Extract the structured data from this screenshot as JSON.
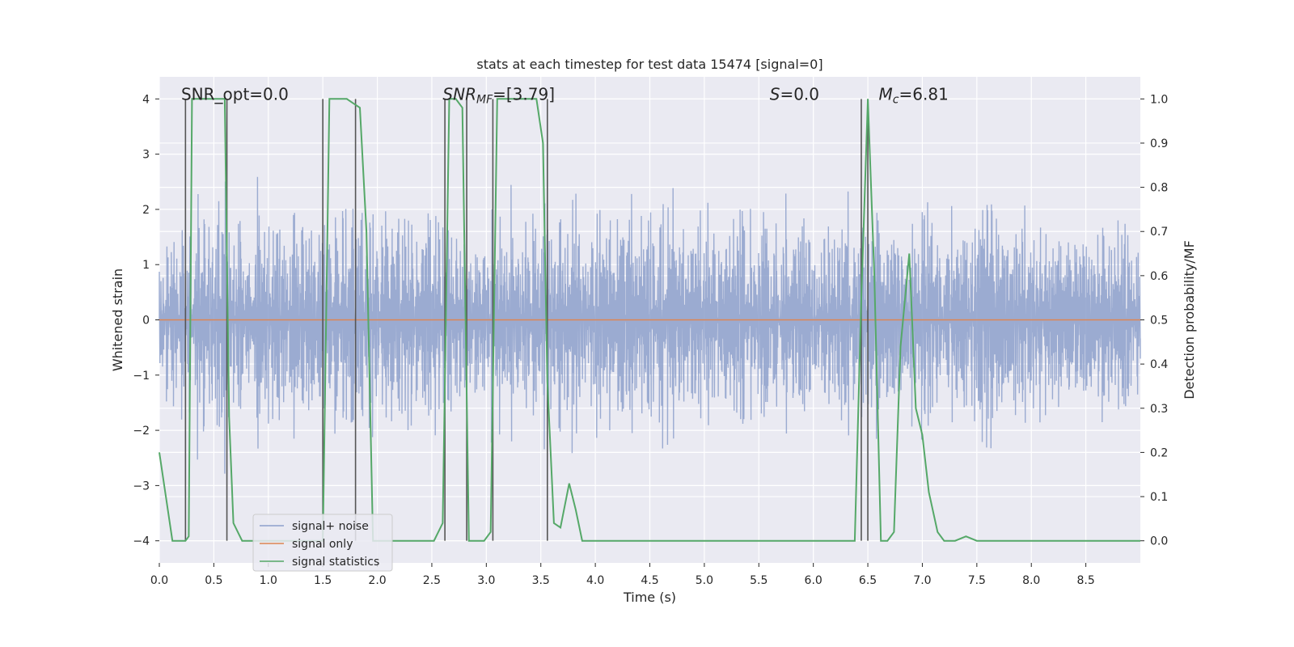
{
  "chart_data": {
    "type": "line",
    "title": "stats at each timestep for test data 15474 [signal=0]",
    "xlabel": "Time (s)",
    "ylabel_left": "Whitened strain",
    "ylabel_right": "Detection probability/MF",
    "xlim": [
      0.0,
      9.0
    ],
    "ylim_left": [
      -4.4,
      4.4
    ],
    "ylim_right": [
      -0.05,
      1.05
    ],
    "x_ticks": [
      0.0,
      0.5,
      1.0,
      1.5,
      2.0,
      2.5,
      3.0,
      3.5,
      4.0,
      4.5,
      5.0,
      5.5,
      6.0,
      6.5,
      7.0,
      7.5,
      8.0,
      8.5
    ],
    "x_tick_labels": [
      "0.0",
      "0.5",
      "1.0",
      "1.5",
      "2.0",
      "2.5",
      "3.0",
      "3.5",
      "4.0",
      "4.5",
      "5.0",
      "5.5",
      "6.0",
      "6.5",
      "7.0",
      "7.5",
      "8.0",
      "8.5"
    ],
    "y_left_ticks": [
      -4,
      -3,
      -2,
      -1,
      0,
      1,
      2,
      3,
      4
    ],
    "y_left_tick_labels": [
      "−4",
      "−3",
      "−2",
      "−1",
      "0",
      "1",
      "2",
      "3",
      "4"
    ],
    "y_right_ticks": [
      0.0,
      0.1,
      0.2,
      0.3,
      0.4,
      0.5,
      0.6,
      0.7,
      0.8,
      0.9,
      1.0
    ],
    "y_right_tick_labels": [
      "0.0",
      "0.1",
      "0.2",
      "0.3",
      "0.4",
      "0.5",
      "0.6",
      "0.7",
      "0.8",
      "0.9",
      "1.0"
    ],
    "annotations": [
      {
        "text": "SNR_opt=0.0",
        "x": 0.2,
        "y": 4.0
      },
      {
        "text": "SNR_MF=[3.79]",
        "x": 2.6,
        "y": 4.0
      },
      {
        "text": "S=0.0",
        "x": 5.6,
        "y": 4.0
      },
      {
        "text": "M_c=6.81",
        "x": 6.6,
        "y": 4.0
      }
    ],
    "vertical_lines": [
      0.24,
      0.62,
      1.5,
      1.8,
      2.62,
      2.82,
      3.06,
      3.56,
      6.44,
      6.5
    ],
    "series": [
      {
        "name": "signal+ noise",
        "axis": "left",
        "color": "#8da0cb",
        "kind": "noise",
        "typical_range": [
          -2.0,
          2.0
        ],
        "peak_range": [
          -3.9,
          3.5
        ]
      },
      {
        "name": "signal only",
        "axis": "left",
        "color": "#dd8452",
        "x": [
          0.0,
          9.0
        ],
        "y": [
          0.0,
          0.0
        ]
      },
      {
        "name": "signal statistics",
        "axis": "right",
        "color": "#55a868",
        "x": [
          0.0,
          0.06,
          0.12,
          0.18,
          0.24,
          0.27,
          0.3,
          0.36,
          0.42,
          0.48,
          0.54,
          0.6,
          0.64,
          0.68,
          0.76,
          0.82,
          0.88,
          0.94,
          1.0,
          1.2,
          1.4,
          1.5,
          1.56,
          1.62,
          1.68,
          1.72,
          1.78,
          1.84,
          1.9,
          1.96,
          2.1,
          2.3,
          2.52,
          2.6,
          2.66,
          2.72,
          2.78,
          2.84,
          2.9,
          2.98,
          3.04,
          3.1,
          3.16,
          3.24,
          3.36,
          3.46,
          3.52,
          3.56,
          3.62,
          3.68,
          3.76,
          3.82,
          3.88,
          4.0,
          4.2,
          4.4,
          4.6,
          4.7,
          4.8,
          5.0,
          5.4,
          5.8,
          6.2,
          6.38,
          6.44,
          6.5,
          6.56,
          6.62,
          6.68,
          6.74,
          6.8,
          6.88,
          6.94,
          7.0,
          7.06,
          7.14,
          7.2,
          7.3,
          7.4,
          7.5,
          8.0,
          8.5,
          9.0
        ],
        "y": [
          0.2,
          0.1,
          0.0,
          0.0,
          0.0,
          0.01,
          1.0,
          1.0,
          1.0,
          1.0,
          1.0,
          1.0,
          0.28,
          0.04,
          0.0,
          0.0,
          0.0,
          0.0,
          0.0,
          0.0,
          0.0,
          0.0,
          1.0,
          1.0,
          1.0,
          1.0,
          0.99,
          0.98,
          0.7,
          0.0,
          0.0,
          0.0,
          0.0,
          0.04,
          1.0,
          1.0,
          0.98,
          0.0,
          0.0,
          0.0,
          0.02,
          1.0,
          1.0,
          1.0,
          1.0,
          1.0,
          0.9,
          0.36,
          0.04,
          0.03,
          0.13,
          0.07,
          0.0,
          0.0,
          0.0,
          0.0,
          0.0,
          0.0,
          0.0,
          0.0,
          0.0,
          0.0,
          0.0,
          0.0,
          0.55,
          1.0,
          0.6,
          0.0,
          0.0,
          0.02,
          0.44,
          0.65,
          0.3,
          0.24,
          0.11,
          0.02,
          0.0,
          0.0,
          0.01,
          0.0,
          0.0,
          0.0,
          0.0
        ]
      }
    ],
    "legend": {
      "position": "lower-left",
      "entries": [
        "signal+ noise",
        "signal only",
        "signal statistics"
      ]
    },
    "grid": true
  }
}
